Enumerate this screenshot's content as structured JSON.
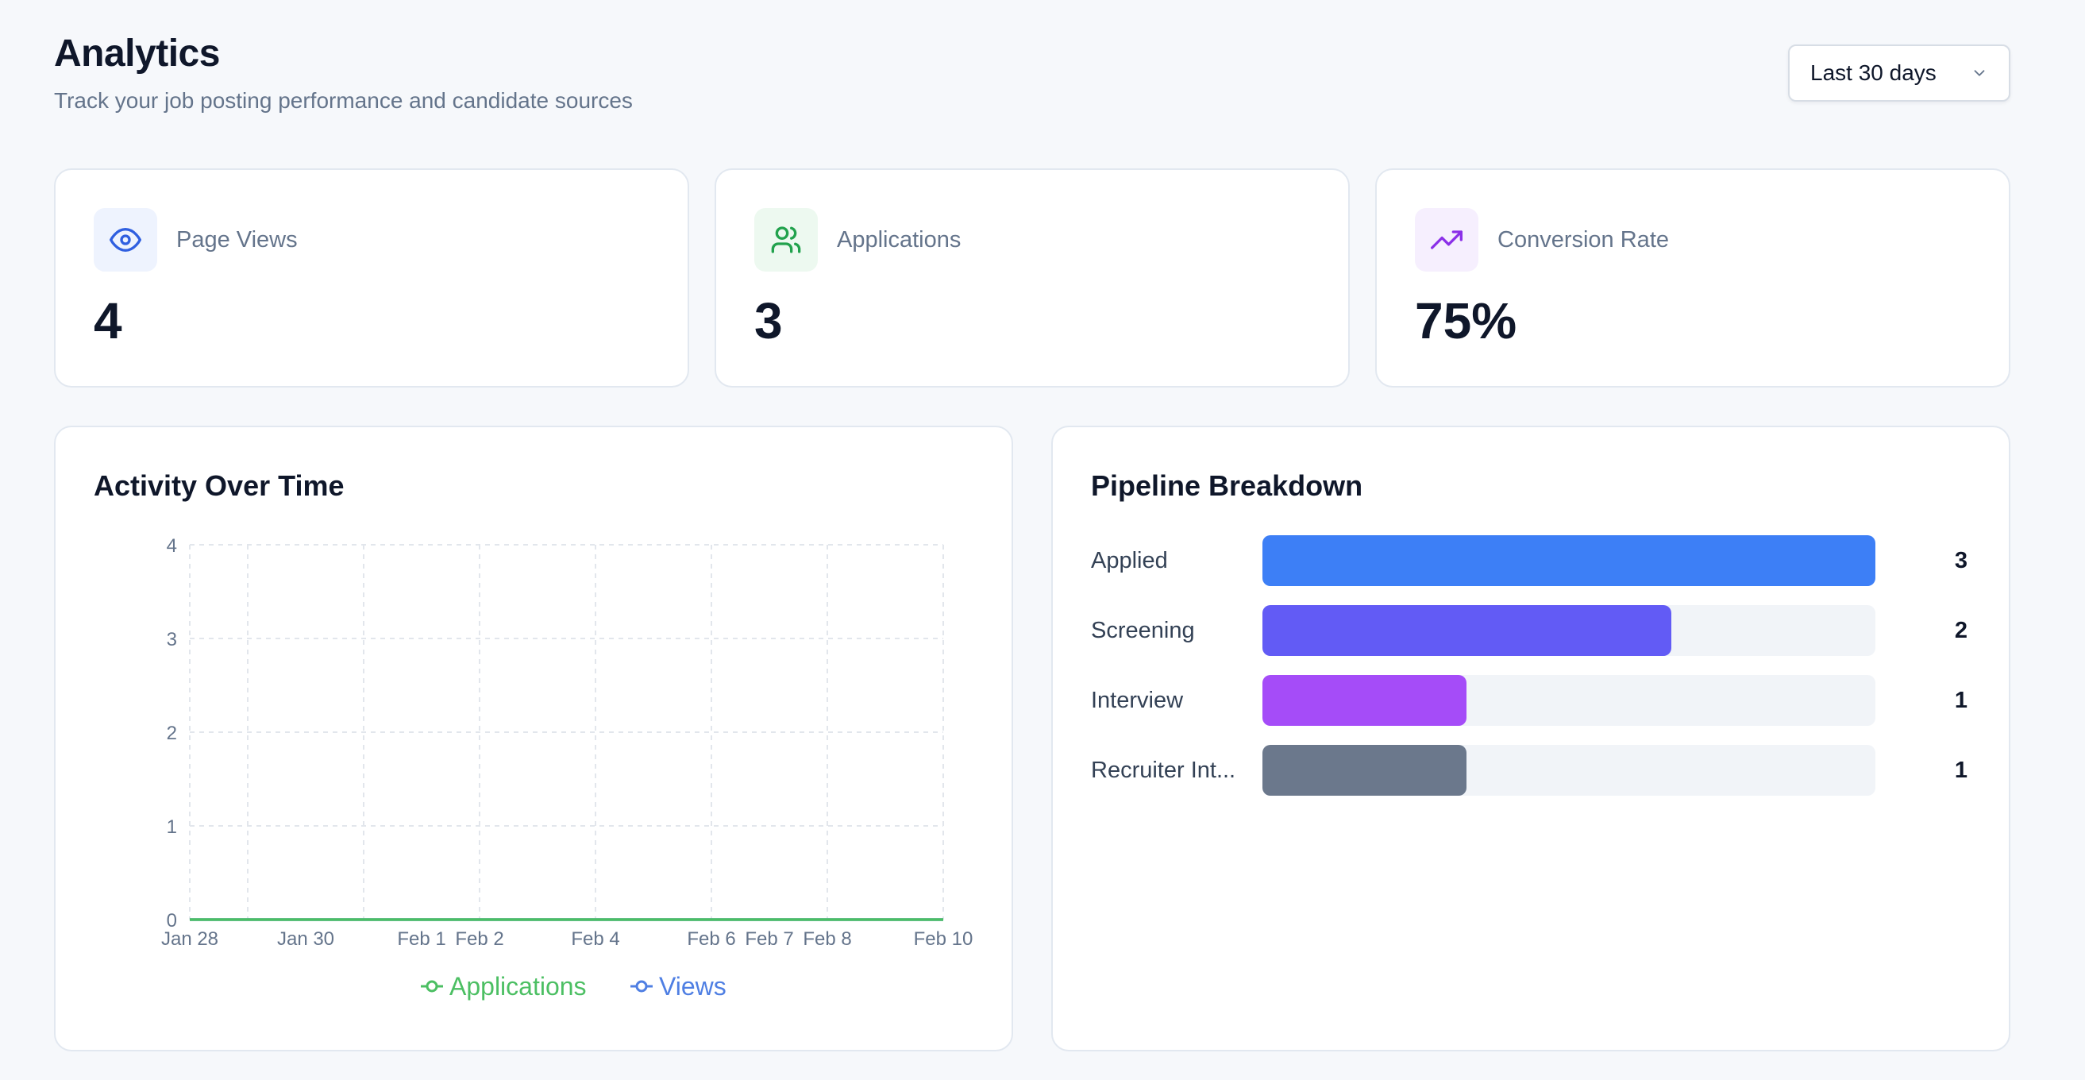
{
  "header": {
    "title": "Analytics",
    "subtitle": "Track your job posting performance and candidate sources"
  },
  "range_select": {
    "value": "Last 30 days",
    "icon": "chevron-down-icon"
  },
  "stats": [
    {
      "label": "Page Views",
      "value": "4",
      "icon": "eye-icon",
      "icon_color": "#2f5fe0",
      "icon_bg": "#eef3fe"
    },
    {
      "label": "Applications",
      "value": "3",
      "icon": "users-icon",
      "icon_color": "#22a24d",
      "icon_bg": "#edf9f0"
    },
    {
      "label": "Conversion Rate",
      "value": "75%",
      "icon": "trending-up-icon",
      "icon_color": "#8b2fe8",
      "icon_bg": "#f6effe"
    }
  ],
  "activity": {
    "title": "Activity Over Time"
  },
  "chart_data": {
    "type": "line",
    "title": "Activity Over Time",
    "x": [
      "Jan 28",
      "Jan 30",
      "Feb 1",
      "Feb 2",
      "Feb 4",
      "Feb 6",
      "Feb 7",
      "Feb 8",
      "Feb 10"
    ],
    "x_day_index": [
      0,
      2,
      4,
      5,
      7,
      9,
      10,
      11,
      13
    ],
    "x_tick_positions": [
      0,
      1,
      3,
      5,
      7,
      9,
      11,
      13
    ],
    "series": [
      {
        "name": "Applications",
        "color": "#4cbf63",
        "values": [
          0,
          0,
          0,
          0,
          0,
          0,
          0,
          0,
          0
        ]
      },
      {
        "name": "Views",
        "color": "#4f7fe3",
        "values": [
          0,
          0,
          0,
          0,
          0,
          0,
          0,
          0,
          0
        ]
      }
    ],
    "yticks": [
      0,
      1,
      2,
      3,
      4
    ],
    "ylim": [
      0,
      4
    ],
    "grid": true,
    "legend": "bottom-center"
  },
  "pipeline": {
    "title": "Pipeline Breakdown",
    "max": 3,
    "stages": [
      {
        "label": "Applied",
        "count": "3",
        "value": 3,
        "color": "#3d7ff6"
      },
      {
        "label": "Screening",
        "count": "2",
        "value": 2,
        "color": "#625bf5"
      },
      {
        "label": "Interview",
        "count": "1",
        "value": 1,
        "color": "#a54cf8"
      },
      {
        "label": "Recruiter Int...",
        "count": "1",
        "value": 1,
        "color": "#6b788c"
      }
    ]
  }
}
